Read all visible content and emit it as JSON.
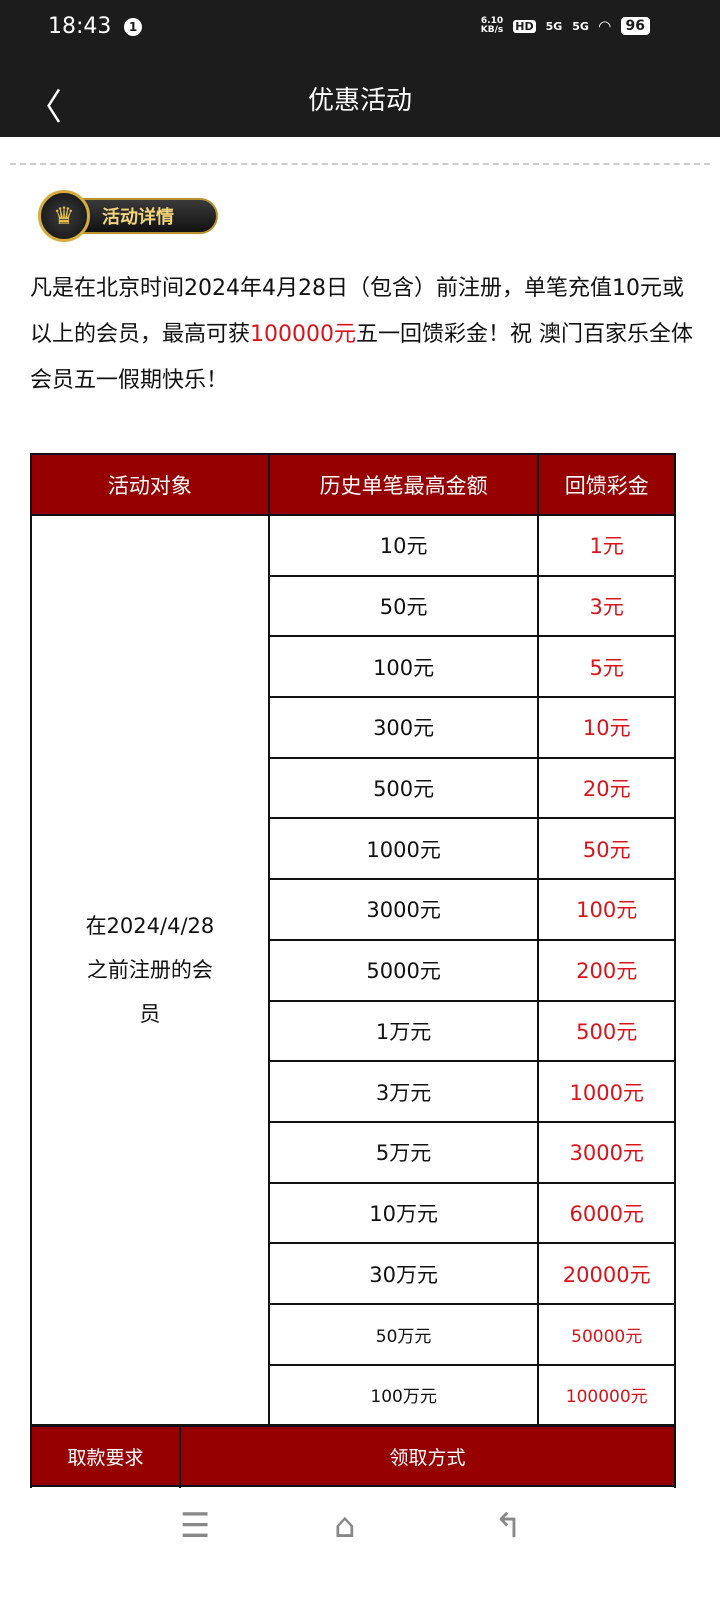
{
  "status_bar": {
    "time": "18:43",
    "notification_count": "1",
    "net_speed": "6.10",
    "net_unit": "KB/s",
    "hd": "HD",
    "sim1": "5G",
    "sim2": "5G",
    "battery": "96"
  },
  "header": {
    "title": "优惠活动"
  },
  "badge": {
    "label": "活动详情"
  },
  "intro": {
    "part1": "凡是在北京时间2024年4月28日（包含）前注册，单笔充值10元或以上的会员，最高可获",
    "highlight": "100000元",
    "part2": "五一回馈彩金！祝 澳门百家乐全体会员五一假期快乐！"
  },
  "table": {
    "headers": [
      "活动对象",
      "历史单笔最高金额",
      "回馈彩金"
    ],
    "target": "在2024/4/28之前注册的会员",
    "rows": [
      {
        "amount": "10元",
        "bonus": "1元"
      },
      {
        "amount": "50元",
        "bonus": "3元"
      },
      {
        "amount": "100元",
        "bonus": "5元"
      },
      {
        "amount": "300元",
        "bonus": "10元"
      },
      {
        "amount": "500元",
        "bonus": "20元"
      },
      {
        "amount": "1000元",
        "bonus": "50元"
      },
      {
        "amount": "3000元",
        "bonus": "100元"
      },
      {
        "amount": "5000元",
        "bonus": "200元"
      },
      {
        "amount": "1万元",
        "bonus": "500元"
      },
      {
        "amount": "3万元",
        "bonus": "1000元"
      },
      {
        "amount": "5万元",
        "bonus": "3000元"
      },
      {
        "amount": "10万元",
        "bonus": "6000元"
      },
      {
        "amount": "30万元",
        "bonus": "20000元"
      },
      {
        "amount": "50万元",
        "bonus": "50000元",
        "small": true
      },
      {
        "amount": "100万元",
        "bonus": "100000元",
        "small": true
      }
    ]
  },
  "table2": {
    "headers": [
      "取款要求",
      "领取方式"
    ]
  },
  "colors": {
    "header_bg": "#1c1c1c",
    "table_header": "#960000",
    "accent_red": "#d9141b"
  }
}
